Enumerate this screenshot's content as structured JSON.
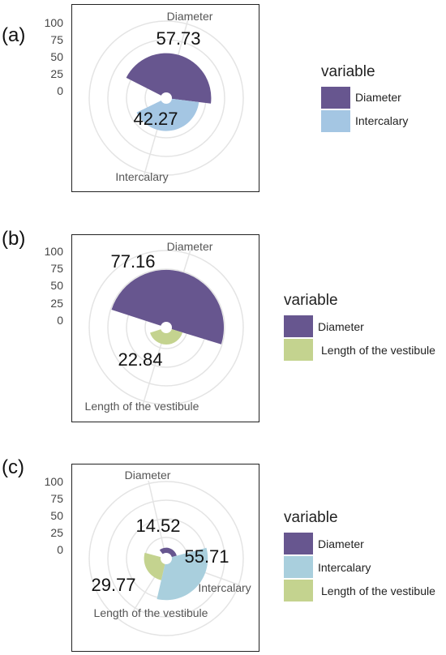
{
  "colors": {
    "Diameter": "#67568f",
    "Intercalary": "#a4c6e3",
    "Intercalary_c": "#a9cfdd",
    "Length of the vestibule": "#c4d38f",
    "grid": "#e4e4e4"
  },
  "chart_data": [
    {
      "type": "polar-bar",
      "panel_label": "(a)",
      "radial_ticks": [
        "100",
        "75",
        "50",
        "25",
        "0"
      ],
      "legend_title": "variable",
      "legend_position": "right",
      "categories": [
        "Diameter",
        "Intercalary"
      ],
      "values": [
        57.73,
        42.27
      ],
      "value_labels": [
        "57.73",
        "42.27"
      ],
      "axis_labels": [
        "Diameter",
        "Intercalary"
      ],
      "legend": [
        "Diameter",
        "Intercalary"
      ]
    },
    {
      "type": "polar-bar",
      "panel_label": "(b)",
      "radial_ticks": [
        "100",
        "75",
        "50",
        "25",
        "0"
      ],
      "legend_title": "variable",
      "legend_position": "right",
      "categories": [
        "Diameter",
        "Length of the vestibule"
      ],
      "values": [
        77.16,
        22.84
      ],
      "value_labels": [
        "77.16",
        "22.84"
      ],
      "axis_labels": [
        "Diameter",
        "Length of the vestibule"
      ],
      "legend": [
        "Diameter",
        "Length of the vestibule"
      ]
    },
    {
      "type": "polar-bar",
      "panel_label": "(c)",
      "radial_ticks": [
        "100",
        "75",
        "50",
        "25",
        "0"
      ],
      "legend_title": "variable",
      "legend_position": "right",
      "categories": [
        "Diameter",
        "Intercalary",
        "Length of the vestibule"
      ],
      "values": [
        14.52,
        55.71,
        29.77
      ],
      "value_labels": [
        "14.52",
        "55.71",
        "29.77"
      ],
      "axis_labels": [
        "Diameter",
        "Intercalary",
        "Length of the vestibule"
      ],
      "legend": [
        "Diameter",
        "Intercalary",
        "Length of the vestibule"
      ]
    }
  ]
}
